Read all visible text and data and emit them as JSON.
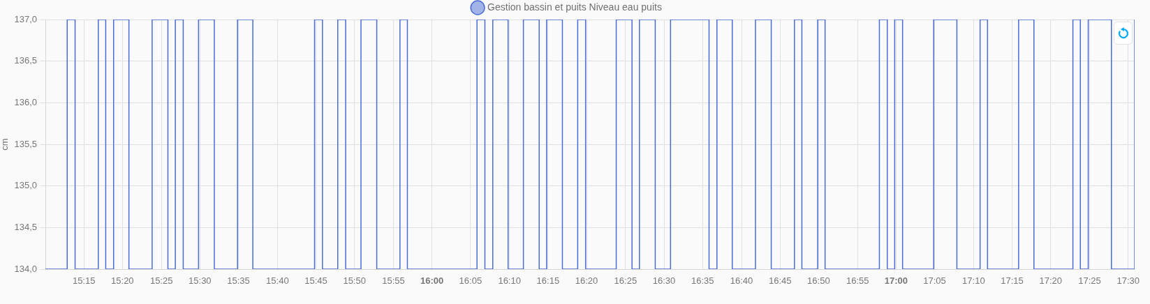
{
  "chart_data": {
    "type": "step",
    "ylabel": "cm",
    "x": [
      15.167,
      15.214,
      15.231,
      15.281,
      15.297,
      15.314,
      15.347,
      15.397,
      15.431,
      15.447,
      15.464,
      15.497,
      15.531,
      15.581,
      15.614,
      15.747,
      15.764,
      15.797,
      15.814,
      15.847,
      15.881,
      15.931,
      15.947,
      16.097,
      16.114,
      16.131,
      16.164,
      16.197,
      16.231,
      16.247,
      16.281,
      16.314,
      16.331,
      16.397,
      16.431,
      16.447,
      16.481,
      16.514,
      16.597,
      16.614,
      16.647,
      16.697,
      16.731,
      16.781,
      16.797,
      16.831,
      16.847,
      16.964,
      16.981,
      16.997,
      17.014,
      17.081,
      17.131,
      17.181,
      17.197,
      17.264,
      17.297,
      17.381,
      17.397,
      17.414,
      17.464,
      17.514
    ],
    "series": [
      {
        "name": "Gestion bassin et puits Niveau eau puits",
        "color": "#4a6cd4",
        "values": [
          134,
          137,
          134,
          137,
          134,
          137,
          134,
          137,
          134,
          137,
          134,
          137,
          134,
          137,
          134,
          137,
          134,
          137,
          134,
          137,
          134,
          137,
          134,
          137,
          134,
          137,
          134,
          137,
          134,
          137,
          134,
          137,
          134,
          137,
          134,
          137,
          134,
          137,
          134,
          137,
          134,
          137,
          134,
          137,
          134,
          137,
          134,
          137,
          134,
          137,
          134,
          137,
          134,
          137,
          134,
          137,
          134,
          137,
          134,
          137,
          134,
          137
        ]
      }
    ],
    "xlim": [
      15.167,
      17.514
    ],
    "xticks": [
      {
        "value": 15.25,
        "label": "15:15"
      },
      {
        "value": 15.333,
        "label": "15:20"
      },
      {
        "value": 15.417,
        "label": "15:25"
      },
      {
        "value": 15.5,
        "label": "15:30"
      },
      {
        "value": 15.583,
        "label": "15:35"
      },
      {
        "value": 15.667,
        "label": "15:40"
      },
      {
        "value": 15.75,
        "label": "15:45"
      },
      {
        "value": 15.833,
        "label": "15:50"
      },
      {
        "value": 15.917,
        "label": "15:55"
      },
      {
        "value": 16,
        "label": "16:00"
      },
      {
        "value": 16.083,
        "label": "16:05"
      },
      {
        "value": 16.167,
        "label": "16:10"
      },
      {
        "value": 16.25,
        "label": "16:15"
      },
      {
        "value": 16.333,
        "label": "16:20"
      },
      {
        "value": 16.417,
        "label": "16:25"
      },
      {
        "value": 16.5,
        "label": "16:30"
      },
      {
        "value": 16.583,
        "label": "16:35"
      },
      {
        "value": 16.667,
        "label": "16:40"
      },
      {
        "value": 16.75,
        "label": "16:45"
      },
      {
        "value": 16.833,
        "label": "16:50"
      },
      {
        "value": 16.917,
        "label": "16:55"
      },
      {
        "value": 17,
        "label": "17:00"
      },
      {
        "value": 17.083,
        "label": "17:05"
      },
      {
        "value": 17.167,
        "label": "17:10"
      },
      {
        "value": 17.25,
        "label": "17:15"
      },
      {
        "value": 17.333,
        "label": "17:20"
      },
      {
        "value": 17.417,
        "label": "17:25"
      },
      {
        "value": 17.5,
        "label": "17:30"
      }
    ],
    "ylim": [
      134,
      137
    ],
    "yticks": [
      {
        "value": 134,
        "label": "134,0"
      },
      {
        "value": 134.5,
        "label": "134,5"
      },
      {
        "value": 135,
        "label": "135,0"
      },
      {
        "value": 135.5,
        "label": "135,5"
      },
      {
        "value": 136,
        "label": "136,0"
      },
      {
        "value": 136.5,
        "label": "136,5"
      },
      {
        "value": 137,
        "label": "137,0"
      }
    ],
    "grid": true,
    "legend": "top"
  }
}
